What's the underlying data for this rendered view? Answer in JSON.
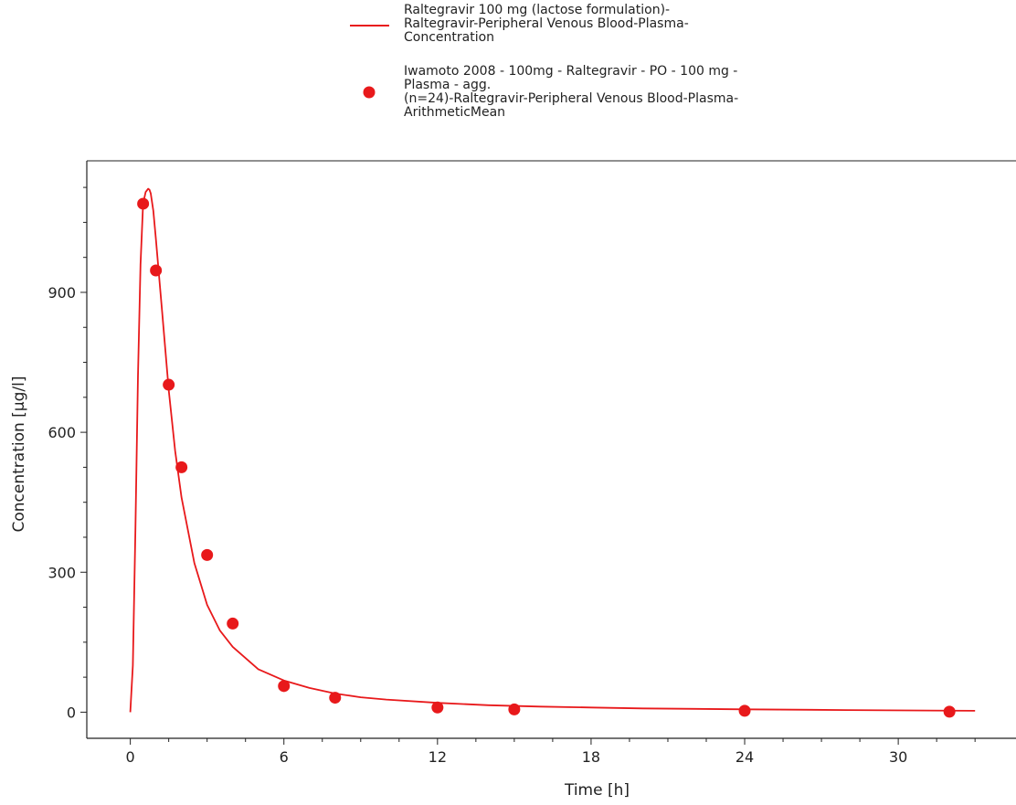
{
  "chart_data": {
    "type": "line",
    "title": "",
    "xlabel": "Time [h]",
    "ylabel": "Concentration [µg/l]",
    "xlim": [
      -1.7,
      34.6
    ],
    "ylim": [
      -56,
      1182
    ],
    "xticks": [
      0,
      6,
      12,
      18,
      24,
      30
    ],
    "yticks": [
      0,
      300,
      600,
      900
    ],
    "grid": false,
    "legend_position": "top-center",
    "series": [
      {
        "name": "Raltegravir 100 mg (lactose formulation)-\nRaltegravir-Peripheral Venous Blood-Plasma-\nConcentration",
        "kind": "line",
        "color": "#e8191b",
        "x": [
          0,
          0.1,
          0.2,
          0.3,
          0.4,
          0.5,
          0.6,
          0.7,
          0.75,
          0.8,
          0.9,
          1.0,
          1.25,
          1.5,
          1.75,
          2.0,
          2.5,
          3.0,
          3.5,
          4.0,
          5.0,
          6.0,
          7.0,
          8.0,
          9.0,
          10,
          12,
          14,
          16,
          18,
          20,
          24,
          28,
          33
        ],
        "y": [
          0,
          100,
          390,
          720,
          960,
          1090,
          1115,
          1122,
          1120,
          1112,
          1075,
          1015,
          855,
          690,
          560,
          460,
          320,
          230,
          175,
          140,
          92,
          68,
          52,
          40,
          32,
          27,
          20,
          15,
          12,
          10,
          8,
          6,
          4.5,
          3
        ]
      },
      {
        "name": "Iwamoto 2008 - 100mg - Raltegravir - PO - 100 mg -\nPlasma - agg.\n(n=24)-Raltegravir-Peripheral Venous Blood-Plasma-\nArithmeticMean",
        "kind": "scatter",
        "color": "#e8191b",
        "x": [
          0.5,
          1.0,
          1.5,
          2.0,
          3.0,
          4.0,
          6.0,
          8.0,
          12.0,
          15.0,
          24.0,
          32.0
        ],
        "y": [
          1090,
          947,
          702,
          525,
          337,
          190,
          56,
          31,
          10,
          6,
          3,
          1
        ]
      }
    ]
  }
}
